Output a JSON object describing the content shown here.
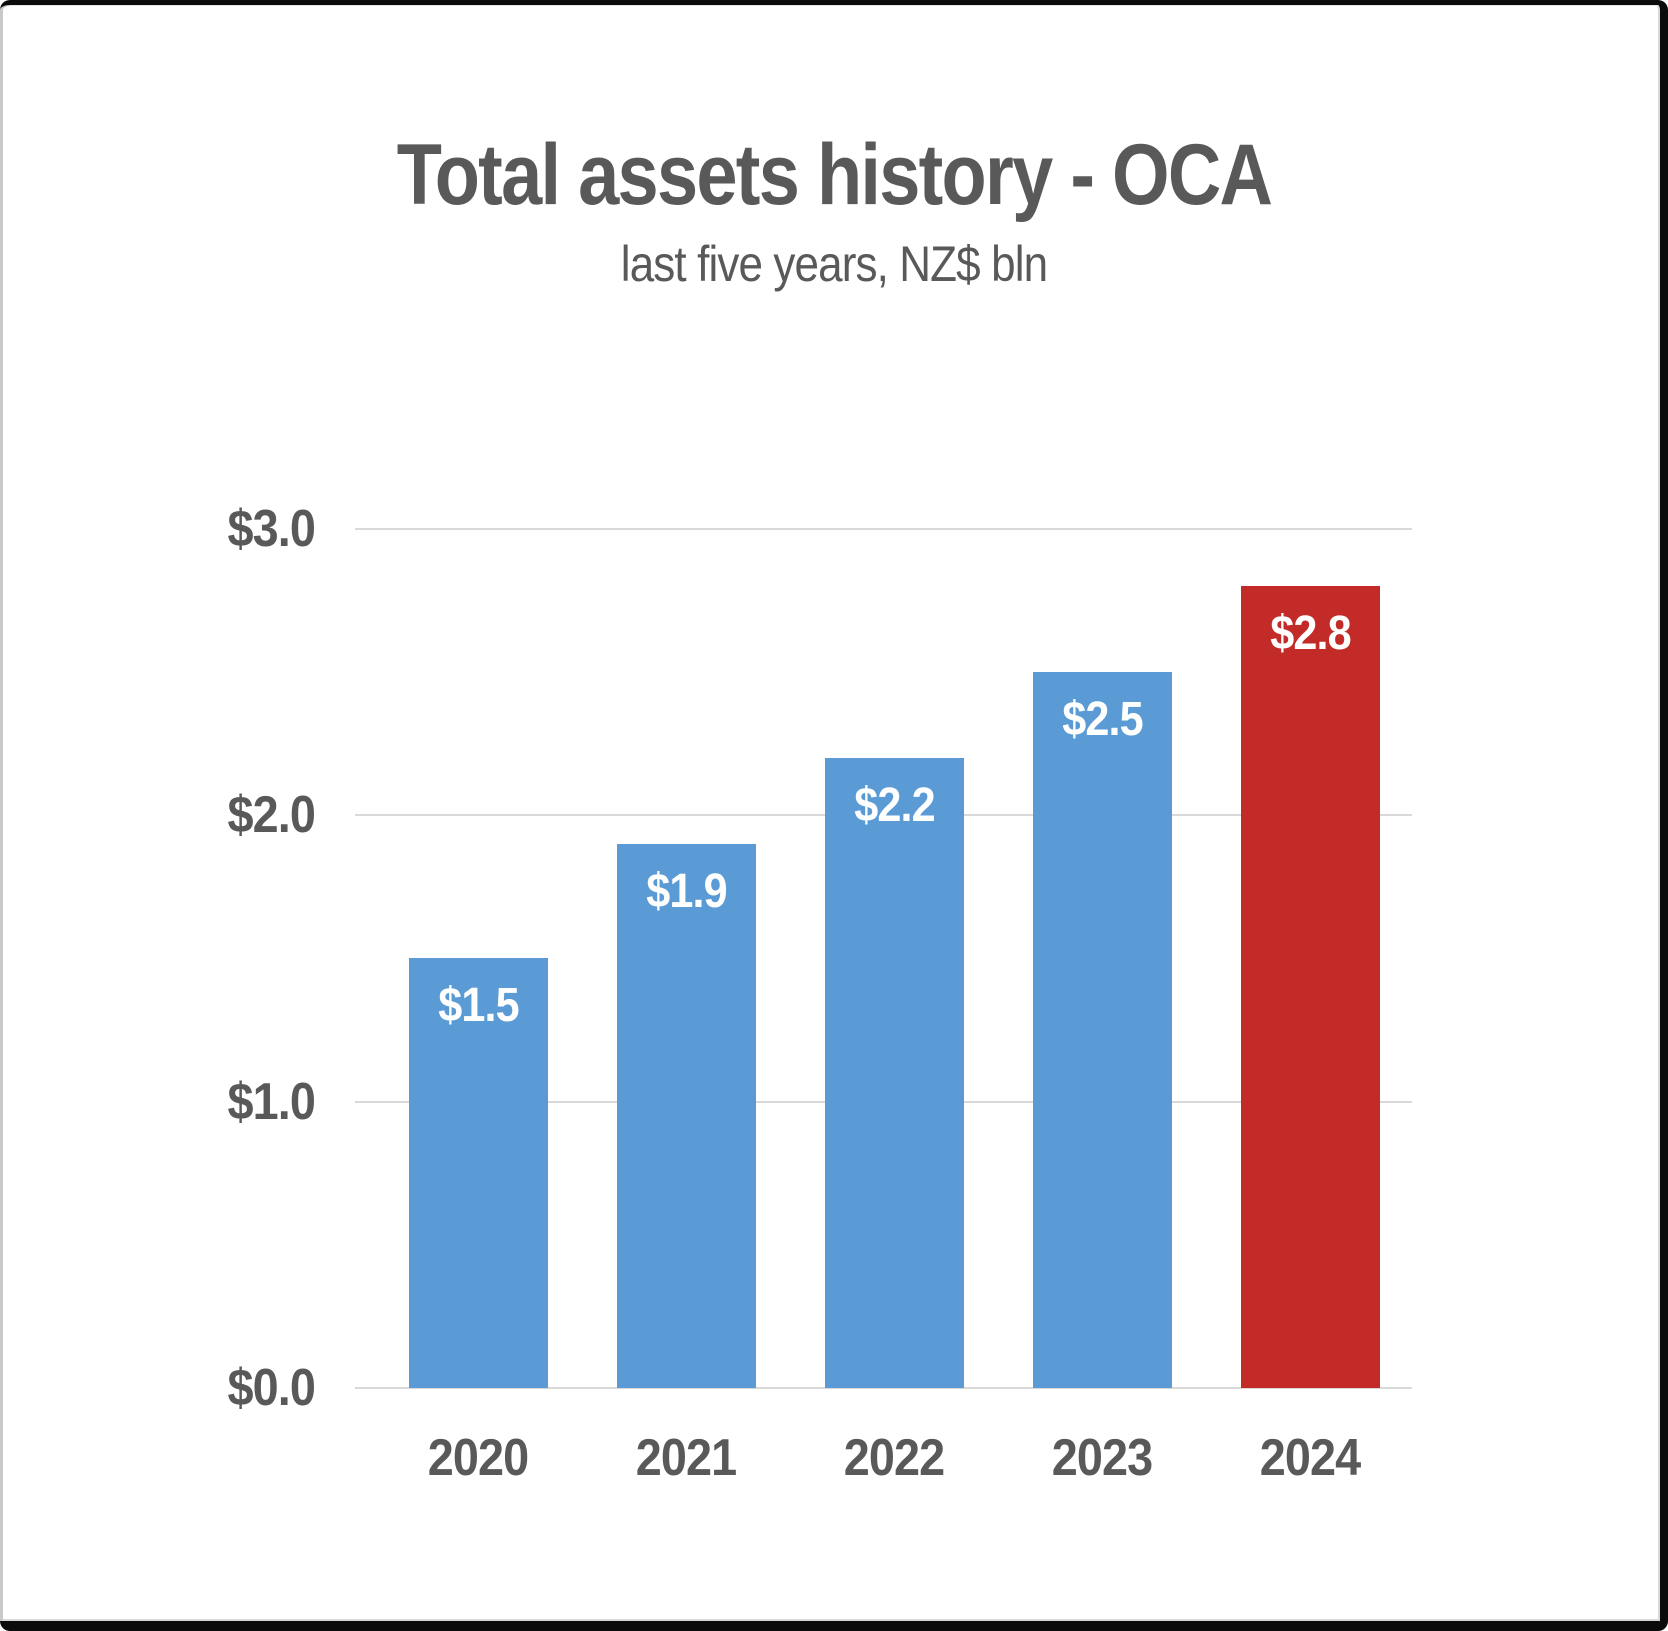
{
  "page": {
    "background": "#FFFFFF",
    "frame_color": "#000000"
  },
  "chart_data": {
    "type": "bar",
    "title": "Total assets history - OCA",
    "subtitle": "last five years, NZ$ bln",
    "categories": [
      "2020",
      "2021",
      "2022",
      "2023",
      "2024"
    ],
    "values": [
      1.5,
      1.9,
      2.2,
      2.5,
      2.8
    ],
    "bar_labels": [
      "$1.5",
      "$1.9",
      "$2.2",
      "$2.5",
      "$2.8"
    ],
    "highlight_index": 4,
    "colors": {
      "bar_default": "#5B9BD5",
      "bar_highlight": "#C22B28",
      "text": "#595959",
      "bar_label_text": "#FFFFFF",
      "gridline": "#D9D9D9"
    },
    "y_axis": {
      "max": 3,
      "ticks": [
        {
          "value": 0,
          "label": "$0.0"
        },
        {
          "value": 1,
          "label": "$1.0"
        },
        {
          "value": 2,
          "label": "$2.0"
        },
        {
          "value": 3,
          "label": "$3.0"
        }
      ]
    },
    "ylim": [
      0,
      3
    ],
    "grid": true,
    "legend": false
  }
}
